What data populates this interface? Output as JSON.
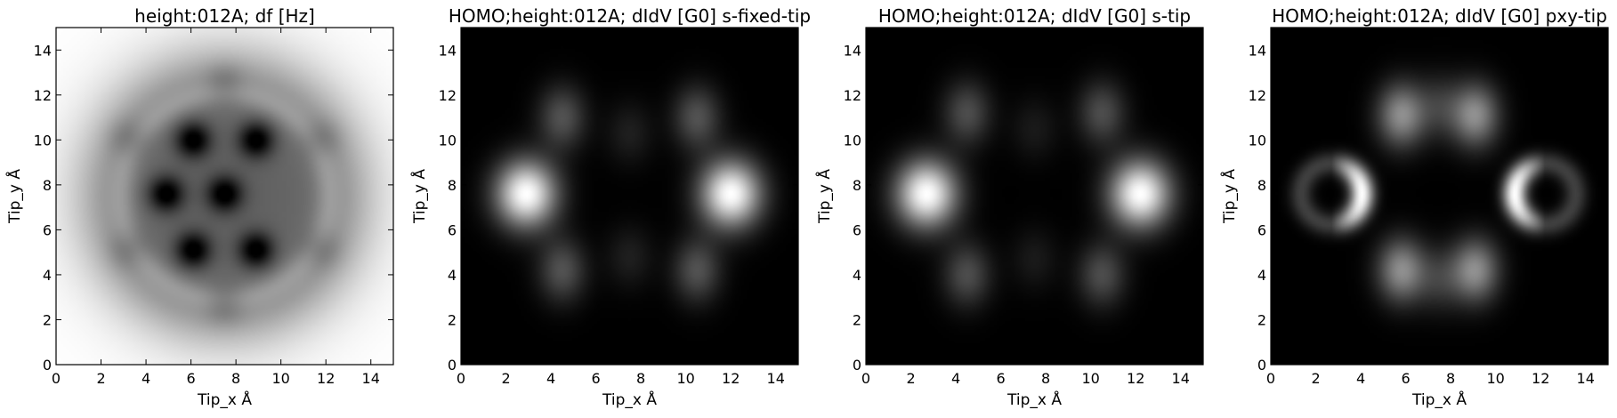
{
  "chart_data": [
    {
      "type": "heatmap",
      "title": "height:012A; df [Hz]",
      "xlabel": "Tip_x Å",
      "ylabel": "Tip_y Å",
      "xlim": [
        0,
        15
      ],
      "ylim": [
        0,
        15
      ],
      "xticks": [
        "0",
        "2",
        "4",
        "6",
        "8",
        "10",
        "12",
        "14"
      ],
      "yticks": [
        "0",
        "2",
        "4",
        "6",
        "8",
        "10",
        "12",
        "14"
      ],
      "colormap": "gray",
      "features": [
        {
          "kind": "dark-disc",
          "center": [
            7.5,
            7.5
          ],
          "radius": 6.0
        },
        {
          "kind": "dark-spot",
          "center": [
            7.5,
            7.6
          ]
        },
        {
          "kind": "dark-spot",
          "center": [
            6.1,
            10.0
          ]
        },
        {
          "kind": "dark-spot",
          "center": [
            8.9,
            10.0
          ]
        },
        {
          "kind": "dark-spot",
          "center": [
            4.9,
            7.6
          ]
        },
        {
          "kind": "dark-spot",
          "center": [
            6.1,
            5.1
          ]
        },
        {
          "kind": "dark-spot",
          "center": [
            8.9,
            5.1
          ]
        }
      ]
    },
    {
      "type": "heatmap",
      "title": "HOMO;height:012A; dIdV [G0] s-fixed-tip",
      "xlabel": "Tip_x Å",
      "ylabel": "Tip_y Å",
      "xlim": [
        0,
        15
      ],
      "ylim": [
        0,
        15
      ],
      "xticks": [
        "0",
        "2",
        "4",
        "6",
        "8",
        "10",
        "12",
        "14"
      ],
      "yticks": [
        "0",
        "2",
        "4",
        "6",
        "8",
        "10",
        "12",
        "14"
      ],
      "colormap": "gray",
      "features": [
        {
          "kind": "bright-lobe",
          "center": [
            2.9,
            7.6
          ],
          "intensity": 1.0
        },
        {
          "kind": "bright-lobe",
          "center": [
            12.0,
            7.6
          ],
          "intensity": 1.0
        },
        {
          "kind": "lobe",
          "center": [
            4.5,
            11.0
          ],
          "intensity": 0.32
        },
        {
          "kind": "lobe",
          "center": [
            10.5,
            11.0
          ],
          "intensity": 0.32
        },
        {
          "kind": "lobe",
          "center": [
            4.5,
            4.2
          ],
          "intensity": 0.32
        },
        {
          "kind": "lobe",
          "center": [
            10.5,
            4.2
          ],
          "intensity": 0.32
        },
        {
          "kind": "lobe",
          "center": [
            7.5,
            10.3
          ],
          "intensity": 0.12
        },
        {
          "kind": "lobe",
          "center": [
            7.5,
            4.8
          ],
          "intensity": 0.12
        }
      ]
    },
    {
      "type": "heatmap",
      "title": "HOMO;height:012A; dIdV [G0] s-tip",
      "xlabel": "Tip_x Å",
      "ylabel": "Tip_y Å",
      "xlim": [
        0,
        15
      ],
      "ylim": [
        0,
        15
      ],
      "xticks": [
        "0",
        "2",
        "4",
        "6",
        "8",
        "10",
        "12",
        "14"
      ],
      "yticks": [
        "0",
        "2",
        "4",
        "6",
        "8",
        "10",
        "12",
        "14"
      ],
      "colormap": "gray",
      "features": [
        {
          "kind": "bright-lobe",
          "center": [
            2.7,
            7.6
          ],
          "intensity": 1.0
        },
        {
          "kind": "bright-lobe",
          "center": [
            12.2,
            7.6
          ],
          "intensity": 1.0
        },
        {
          "kind": "lobe",
          "center": [
            4.5,
            11.2
          ],
          "intensity": 0.3
        },
        {
          "kind": "lobe",
          "center": [
            10.5,
            11.2
          ],
          "intensity": 0.3
        },
        {
          "kind": "lobe",
          "center": [
            4.5,
            4.0
          ],
          "intensity": 0.3
        },
        {
          "kind": "lobe",
          "center": [
            10.5,
            4.0
          ],
          "intensity": 0.3
        },
        {
          "kind": "lobe",
          "center": [
            7.5,
            10.5
          ],
          "intensity": 0.1
        },
        {
          "kind": "lobe",
          "center": [
            7.5,
            4.7
          ],
          "intensity": 0.1
        }
      ]
    },
    {
      "type": "heatmap",
      "title": "HOMO;height:012A; dIdV [G0] pxy-tip",
      "xlabel": "Tip_x Å",
      "ylabel": "Tip_y Å",
      "xlim": [
        0,
        15
      ],
      "ylim": [
        0,
        15
      ],
      "xticks": [
        "0",
        "2",
        "4",
        "6",
        "8",
        "10",
        "12",
        "14"
      ],
      "yticks": [
        "0",
        "2",
        "4",
        "6",
        "8",
        "10",
        "12",
        "14"
      ],
      "colormap": "gray",
      "features": [
        {
          "kind": "bright-ring",
          "center": [
            2.7,
            7.6
          ],
          "intensity": 1.0
        },
        {
          "kind": "bright-ring",
          "center": [
            12.2,
            7.6
          ],
          "intensity": 1.0
        },
        {
          "kind": "lobe",
          "center": [
            5.8,
            11.1
          ],
          "intensity": 0.55
        },
        {
          "kind": "lobe",
          "center": [
            9.1,
            11.1
          ],
          "intensity": 0.55
        },
        {
          "kind": "lobe",
          "center": [
            5.8,
            4.2
          ],
          "intensity": 0.55
        },
        {
          "kind": "lobe",
          "center": [
            9.1,
            4.2
          ],
          "intensity": 0.55
        },
        {
          "kind": "lobe",
          "center": [
            7.5,
            11.5
          ],
          "intensity": 0.2
        },
        {
          "kind": "lobe",
          "center": [
            7.5,
            3.8
          ],
          "intensity": 0.2
        }
      ]
    }
  ]
}
